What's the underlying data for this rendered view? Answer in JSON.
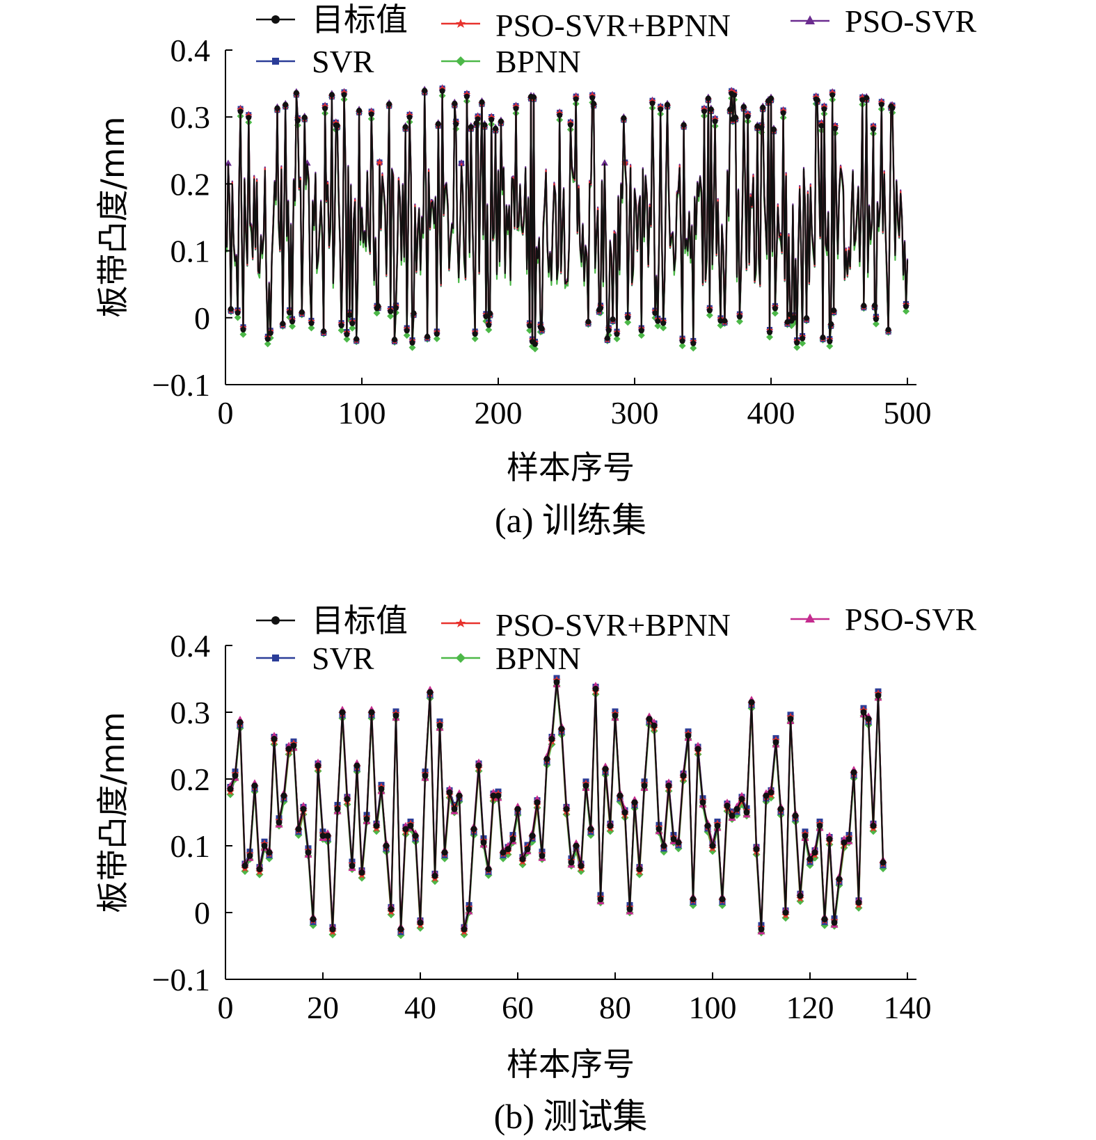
{
  "chart_data": [
    {
      "type": "line",
      "caption": "(a) 训练集",
      "xlabel": "样本序号",
      "ylabel": "板带凸度/mm",
      "xlim": [
        0,
        500
      ],
      "ylim": [
        -0.1,
        0.4
      ],
      "xticks": [
        "0",
        "100",
        "200",
        "300",
        "400",
        "500"
      ],
      "yticks": [
        "−0.1",
        "0",
        "0.1",
        "0.2",
        "0.3",
        "0.4"
      ],
      "xtick_values": [
        0,
        100,
        200,
        300,
        400,
        500
      ],
      "ytick_values": [
        -0.1,
        0,
        0.1,
        0.2,
        0.3,
        0.4
      ],
      "legend": [
        "目标值",
        "PSO-SVR+BPNN",
        "PSO-SVR",
        "SVR",
        "BPNN"
      ],
      "n_points": 500,
      "series": [
        {
          "name": "目标值",
          "color": "#111111",
          "marker": "circle"
        },
        {
          "name": "PSO-SVR+BPNN",
          "color": "#e8322d",
          "marker": "star"
        },
        {
          "name": "PSO-SVR",
          "color": "#6b2c8f",
          "marker": "triangle"
        },
        {
          "name": "SVR",
          "color": "#2b3d98",
          "marker": "square"
        },
        {
          "name": "BPNN",
          "color": "#4cb848",
          "marker": "diamond"
        }
      ]
    },
    {
      "type": "line",
      "caption": "(b) 测试集",
      "xlabel": "样本序号",
      "ylabel": "板带凸度/mm",
      "xlim": [
        0,
        140
      ],
      "ylim": [
        -0.1,
        0.4
      ],
      "xticks": [
        "0",
        "20",
        "40",
        "60",
        "80",
        "100",
        "120",
        "140"
      ],
      "yticks": [
        "−0.1",
        "0",
        "0.1",
        "0.2",
        "0.3",
        "0.4"
      ],
      "xtick_values": [
        0,
        20,
        40,
        60,
        80,
        100,
        120,
        140
      ],
      "ytick_values": [
        -0.1,
        0,
        0.1,
        0.2,
        0.3,
        0.4
      ],
      "legend": [
        "目标值",
        "PSO-SVR+BPNN",
        "PSO-SVR",
        "SVR",
        "BPNN"
      ],
      "x_start": 1,
      "target": [
        0.185,
        0.205,
        0.285,
        0.07,
        0.085,
        0.19,
        0.065,
        0.1,
        0.09,
        0.26,
        0.135,
        0.175,
        0.245,
        0.25,
        0.125,
        0.155,
        0.09,
        -0.01,
        0.22,
        0.115,
        0.115,
        -0.025,
        0.155,
        0.3,
        0.17,
        0.07,
        0.22,
        0.06,
        0.14,
        0.3,
        0.13,
        0.185,
        0.1,
        0.005,
        0.295,
        -0.025,
        0.125,
        0.13,
        0.115,
        -0.015,
        0.205,
        0.33,
        0.055,
        0.28,
        0.09,
        0.18,
        0.155,
        0.175,
        -0.025,
        0.005,
        0.125,
        0.22,
        0.105,
        0.065,
        0.175,
        0.175,
        0.09,
        0.095,
        0.11,
        0.155,
        0.08,
        0.095,
        0.115,
        0.165,
        0.085,
        0.23,
        0.26,
        0.345,
        0.275,
        0.155,
        0.075,
        0.1,
        0.07,
        0.19,
        0.125,
        0.335,
        0.02,
        0.215,
        0.13,
        0.295,
        0.175,
        0.15,
        0.005,
        0.165,
        0.065,
        0.19,
        0.29,
        0.28,
        0.125,
        0.1,
        0.19,
        0.11,
        0.105,
        0.205,
        0.265,
        0.02,
        0.245,
        0.165,
        0.13,
        0.1,
        0.13,
        0.02,
        0.16,
        0.145,
        0.155,
        0.17,
        0.15,
        0.315,
        0.095,
        -0.025,
        0.175,
        0.18,
        0.255,
        0.155,
        0.0,
        0.29,
        0.145,
        0.025,
        0.115,
        0.08,
        0.09,
        0.13,
        -0.01,
        0.11,
        -0.015,
        0.05,
        0.105,
        0.11,
        0.21,
        0.015,
        0.3,
        0.29,
        0.13,
        0.325,
        0.075
      ],
      "series": [
        {
          "name": "目标值",
          "color": "#111111",
          "marker": "circle",
          "offsets": [
            0
          ]
        },
        {
          "name": "PSO-SVR+BPNN",
          "color": "#e8322d",
          "marker": "star",
          "offsets": [
            -0.004,
            0.003,
            -0.002
          ]
        },
        {
          "name": "PSO-SVR",
          "color": "#c42a8e",
          "marker": "triangle",
          "offsets": [
            0.005,
            -0.003,
            0.004
          ]
        },
        {
          "name": "SVR",
          "color": "#2b3d98",
          "marker": "square",
          "offsets": [
            0.003,
            0.006,
            -0.004
          ]
        },
        {
          "name": "BPNN",
          "color": "#4cb848",
          "marker": "diamond",
          "offsets": [
            -0.008,
            -0.005,
            -0.009
          ]
        }
      ]
    }
  ]
}
